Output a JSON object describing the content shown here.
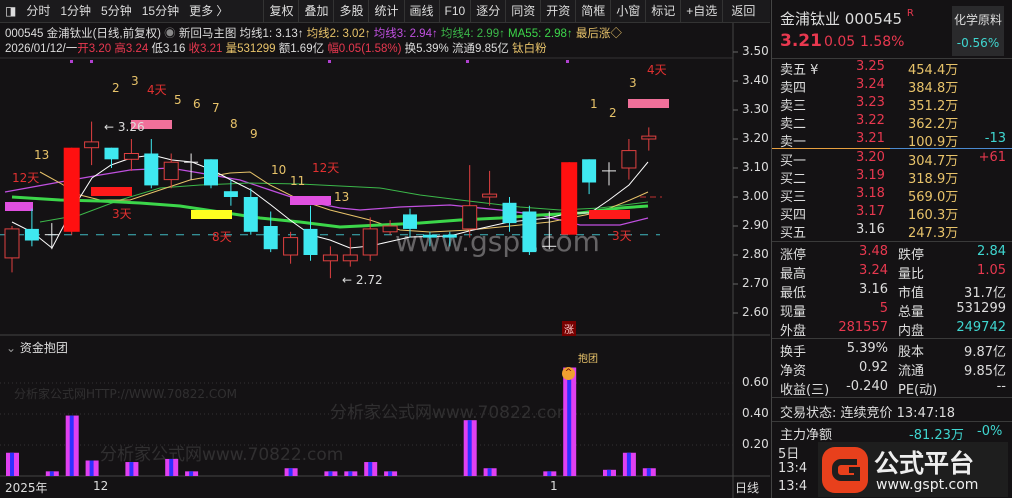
{
  "toolbar": {
    "left": [
      "分时",
      "1分钟",
      "5分钟",
      "15分钟",
      "更多 〉"
    ],
    "buttons": [
      "复权",
      "叠加",
      "多股",
      "统计",
      "画线",
      "F10",
      "逐分",
      "同资",
      "开资",
      "简框",
      "小窗",
      "标记",
      "+自选"
    ],
    "back": "返回"
  },
  "info1": {
    "code": "000545",
    "name": "金浦钛业(日线,前复权)",
    "template": "新回马主图",
    "ma1": "均线1: 3.13↑",
    "ma2": "均线2: 3.02↑",
    "ma3": "均线3: 2.94↑",
    "ma4": "均线4: 2.99↑",
    "ma55": "MA55: 2.98↑",
    "last": "最后涨◇"
  },
  "info2": {
    "date": "2026/01/12/一",
    "open": "开3.20",
    "high": "高3.24",
    "low": "低3.16",
    "close": "收3.21",
    "vol": "量531299",
    "amount": "额1.69亿",
    "range": "幅0.05(1.58%)",
    "turnover": "换5.39%",
    "float": "流通9.85亿",
    "sector": "钛白粉"
  },
  "chart_data": {
    "type": "candlestick",
    "y_ticks": [
      "3.50",
      "3.40",
      "3.30",
      "3.20",
      "3.10",
      "3.00",
      "2.90",
      "2.80",
      "2.70",
      "2.60"
    ],
    "ylim": [
      2.6,
      3.5
    ],
    "candles": [
      [
        2.79,
        2.9,
        2.74,
        2.89
      ],
      [
        2.89,
        2.96,
        2.83,
        2.85
      ],
      [
        2.87,
        2.91,
        2.82,
        2.87
      ],
      [
        2.88,
        3.17,
        2.87,
        3.17
      ],
      [
        3.17,
        3.26,
        3.11,
        3.19
      ],
      [
        3.17,
        3.17,
        3.1,
        3.13
      ],
      [
        3.13,
        3.2,
        3.09,
        3.15
      ],
      [
        3.15,
        3.2,
        3.03,
        3.04
      ],
      [
        3.06,
        3.15,
        3.03,
        3.12
      ],
      [
        3.12,
        3.15,
        3.06,
        3.12
      ],
      [
        3.13,
        3.13,
        3.03,
        3.04
      ],
      [
        3.02,
        3.06,
        2.97,
        3.0
      ],
      [
        3.0,
        3.03,
        2.87,
        2.88
      ],
      [
        2.9,
        2.95,
        2.81,
        2.82
      ],
      [
        2.8,
        2.88,
        2.77,
        2.86
      ],
      [
        2.89,
        2.97,
        2.78,
        2.8
      ],
      [
        2.78,
        2.83,
        2.72,
        2.8
      ],
      [
        2.78,
        2.86,
        2.76,
        2.8
      ],
      [
        2.8,
        2.93,
        2.78,
        2.89
      ],
      [
        2.88,
        2.92,
        2.87,
        2.9
      ],
      [
        2.94,
        2.96,
        2.86,
        2.89
      ],
      [
        2.87,
        2.88,
        2.83,
        2.86
      ],
      [
        2.87,
        2.88,
        2.83,
        2.86
      ],
      [
        2.89,
        3.11,
        2.86,
        2.97
      ],
      [
        3.0,
        3.09,
        2.97,
        3.01
      ],
      [
        2.98,
        3.0,
        2.88,
        2.91
      ],
      [
        2.95,
        2.97,
        2.8,
        2.81
      ],
      [
        2.83,
        2.95,
        2.82,
        2.83
      ],
      [
        2.87,
        3.12,
        2.87,
        3.12
      ],
      [
        3.13,
        3.13,
        3.01,
        3.05
      ],
      [
        3.09,
        3.12,
        3.04,
        3.09
      ],
      [
        3.1,
        3.2,
        3.06,
        3.16
      ],
      [
        3.2,
        3.24,
        3.16,
        3.21
      ]
    ],
    "candle_format": [
      "open",
      "high",
      "low",
      "close"
    ],
    "annotations": [
      "13",
      "12天",
      "2",
      "3",
      "4天",
      "5",
      "6",
      "7",
      "8",
      "9",
      "3.26",
      "3天",
      "8天",
      "10",
      "11",
      "12天",
      "13",
      "2.72",
      "1",
      "2",
      "3",
      "4天",
      "3天"
    ],
    "sub": {
      "title": "资金抱团",
      "y_ticks": [
        "0.60",
        "0.40",
        "0.20"
      ],
      "ylim": [
        0,
        0.8
      ],
      "values": [
        0.15,
        0,
        0.03,
        0.39,
        0.1,
        0,
        0.09,
        0,
        0.11,
        0.03,
        0,
        0,
        0,
        0,
        0.05,
        0,
        0.03,
        0.03,
        0.09,
        0.03,
        0,
        0,
        0,
        0.36,
        0.05,
        0,
        0,
        0.03,
        0.7,
        0,
        0.04,
        0.15,
        0.05
      ],
      "signal_label": "抱团",
      "badge": "涨"
    },
    "x_ticks": [
      "2025年",
      "12",
      "1"
    ],
    "period": "日线"
  },
  "watermarks": {
    "site": "分析家公式网www.70822.com",
    "url": "分析家公式网HTTP://WWW.70822.COM",
    "center": "www.gspt.com",
    "logo_text": "公式平台",
    "logo_url": "www.gspt.com"
  },
  "right": {
    "name": "金浦钛业",
    "code": "000545",
    "flag": "R",
    "price": "3.21",
    "change": "0.05",
    "pct": "1.58%",
    "sector": "化学原料",
    "sector_pct": "-0.56%",
    "asks": [
      {
        "l": "卖五 ¥",
        "p": "3.25",
        "v": "454.4万",
        "d": ""
      },
      {
        "l": "卖四",
        "p": "3.24",
        "v": "384.8万",
        "d": ""
      },
      {
        "l": "卖三",
        "p": "3.23",
        "v": "351.2万",
        "d": ""
      },
      {
        "l": "卖二",
        "p": "3.22",
        "v": "362.2万",
        "d": ""
      },
      {
        "l": "卖一",
        "p": "3.21",
        "v": "100.9万",
        "d": "-13"
      }
    ],
    "bids": [
      {
        "l": "买一",
        "p": "3.20",
        "v": "304.7万",
        "d": "+61"
      },
      {
        "l": "买二",
        "p": "3.19",
        "v": "318.9万",
        "d": ""
      },
      {
        "l": "买三",
        "p": "3.18",
        "v": "569.0万",
        "d": ""
      },
      {
        "l": "买四",
        "p": "3.17",
        "v": "160.3万",
        "d": ""
      },
      {
        "l": "买五",
        "p": "3.16",
        "v": "247.3万",
        "d": ""
      }
    ],
    "stats": [
      [
        "涨停",
        "3.48",
        "跌停",
        "2.84"
      ],
      [
        "最高",
        "3.24",
        "量比",
        "1.05"
      ],
      [
        "最低",
        "3.16",
        "市值",
        "31.7亿"
      ],
      [
        "现量",
        "5",
        "总量",
        "531299"
      ],
      [
        "外盘",
        "281557",
        "内盘",
        "249742"
      ]
    ],
    "stats2": [
      [
        "换手",
        "5.39%",
        "股本",
        "9.87亿"
      ],
      [
        "净资",
        "0.92",
        "流通",
        "9.85亿"
      ],
      [
        "收益(三)",
        "-0.240",
        "PE(动)",
        "--"
      ]
    ],
    "status": "交易状态: 连续竞价 13:47:18",
    "flow": {
      "label": "主力净额",
      "value": "-81.23万",
      "pct": "-0%",
      "row2": "5日",
      "t1": "13:4",
      "t2": "13:4"
    }
  }
}
